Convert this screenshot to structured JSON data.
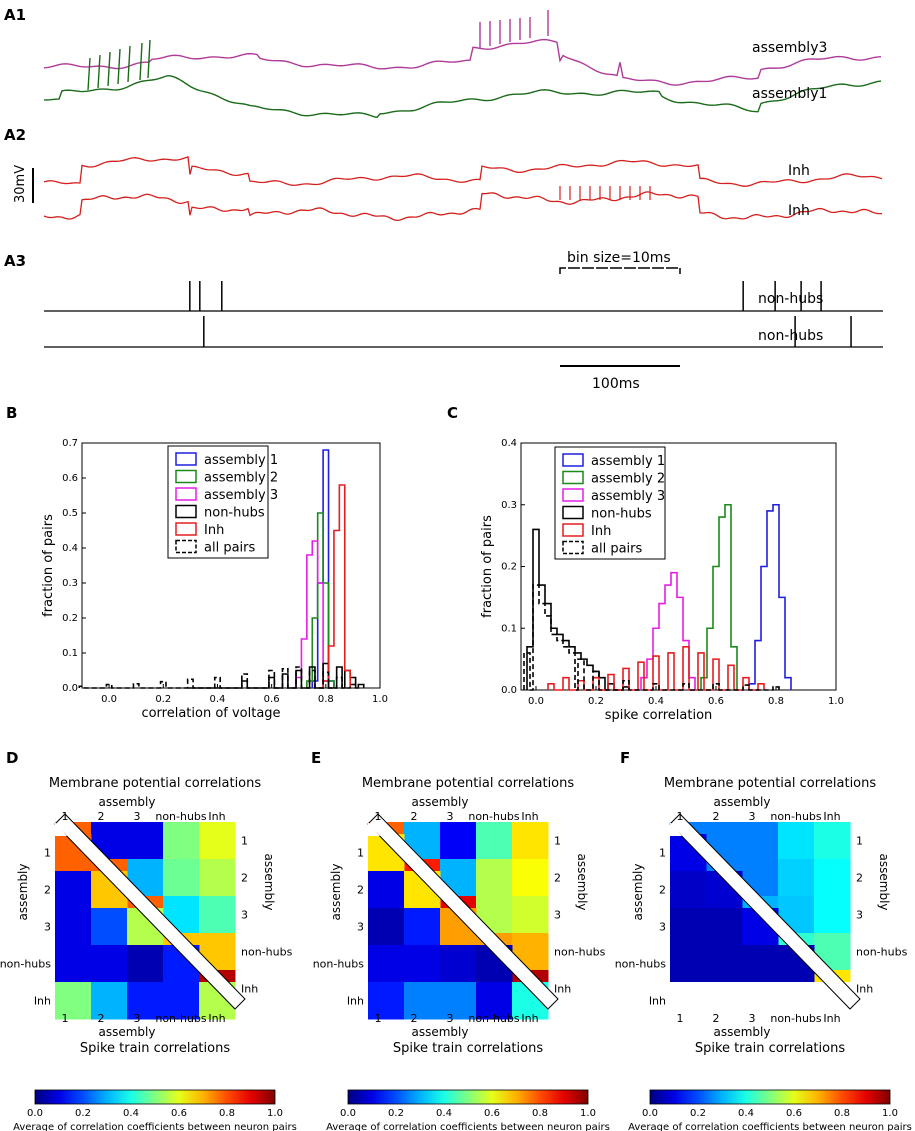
{
  "figure": {
    "panels": {
      "A1": "A1",
      "A2": "A2",
      "A3": "A3",
      "B": "B",
      "C": "C",
      "D": "D",
      "E": "E",
      "F": "F"
    },
    "traces": {
      "assembly3_label": "assembly3",
      "assembly1_label": "assembly1",
      "inh1_label": "Inh",
      "inh2_label": "Inh",
      "scale_voltage": "30mV",
      "colors": {
        "assembly3": "#b03a9a",
        "assembly1": "#1a6b1a",
        "inh": "#d4201e"
      }
    },
    "rasters": {
      "bin_label": "bin size=10ms",
      "row1_label": "non-hubs",
      "row2_label": "non-hubs",
      "time_scale": "100ms",
      "row1_spikes_ms": [
        73,
        78,
        89,
        350,
        366,
        379,
        389
      ],
      "row2_spikes_ms": [
        80,
        376,
        404
      ],
      "t_max_ms": 420
    }
  },
  "chart_data": [
    {
      "id": "B",
      "type": "histogram",
      "title": "",
      "xlabel": "correlation of voltage",
      "ylabel": "fraction of pairs",
      "xlim": [
        -0.1,
        1.0
      ],
      "ylim": [
        0,
        0.7
      ],
      "xticks": [
        "0.0",
        "0.2",
        "0.4",
        "0.6",
        "0.8",
        "1.0"
      ],
      "yticks": [
        "0.0",
        "0.1",
        "0.2",
        "0.3",
        "0.4",
        "0.5",
        "0.6",
        "0.7"
      ],
      "legend": [
        "assembly 1",
        "assembly 2",
        "assembly 3",
        "non-hubs",
        "Inh",
        "all pairs"
      ],
      "series": [
        {
          "name": "assembly 1",
          "color": "#1f1fe0",
          "dash": false,
          "x": [
            0.76,
            0.78,
            0.8,
            0.82
          ],
          "values": [
            0.02,
            0.3,
            0.68,
            0.02
          ]
        },
        {
          "name": "assembly 2",
          "color": "#1a8a1a",
          "dash": false,
          "x": [
            0.74,
            0.76,
            0.78,
            0.8,
            0.82
          ],
          "values": [
            0.02,
            0.2,
            0.5,
            0.3,
            0.02
          ]
        },
        {
          "name": "assembly 3",
          "color": "#e61ee6",
          "dash": false,
          "x": [
            0.7,
            0.72,
            0.74,
            0.76,
            0.78,
            0.8
          ],
          "values": [
            0.03,
            0.14,
            0.38,
            0.42,
            0.3,
            0.02
          ]
        },
        {
          "name": "non-hubs",
          "color": "#000000",
          "dash": false,
          "x": [
            0.3,
            0.5,
            0.6,
            0.65,
            0.7,
            0.75,
            0.8,
            0.85,
            0.88,
            0.9,
            0.93
          ],
          "values": [
            0.0,
            0.02,
            0.03,
            0.04,
            0.05,
            0.06,
            0.07,
            0.06,
            0.05,
            0.03,
            0.01
          ]
        },
        {
          "name": "Inh",
          "color": "#e61e1e",
          "dash": false,
          "x": [
            0.8,
            0.82,
            0.84,
            0.86,
            0.88
          ],
          "values": [
            0.02,
            0.12,
            0.45,
            0.58,
            0.05
          ]
        },
        {
          "name": "all pairs",
          "color": "#000000",
          "dash": true,
          "x": [
            -0.1,
            0.0,
            0.1,
            0.2,
            0.3,
            0.4,
            0.5,
            0.6,
            0.65,
            0.7,
            0.75,
            0.8,
            0.85,
            0.9
          ],
          "values": [
            0.005,
            0.01,
            0.012,
            0.018,
            0.025,
            0.03,
            0.04,
            0.05,
            0.055,
            0.06,
            0.05,
            0.045,
            0.03,
            0.01
          ]
        }
      ]
    },
    {
      "id": "C",
      "type": "histogram",
      "title": "",
      "xlabel": "spike correlation",
      "ylabel": "fraction of pairs",
      "xlim": [
        -0.05,
        1.0
      ],
      "ylim": [
        0,
        0.4
      ],
      "xticks": [
        "0.0",
        "0.2",
        "0.4",
        "0.6",
        "0.8",
        "1.0"
      ],
      "yticks": [
        "0.0",
        "0.1",
        "0.2",
        "0.3",
        "0.4"
      ],
      "legend": [
        "assembly 1",
        "assembly 2",
        "assembly 3",
        "non-hubs",
        "Inh",
        "all pairs"
      ],
      "series": [
        {
          "name": "assembly 1",
          "color": "#1f1fe0",
          "dash": false,
          "x": [
            0.72,
            0.74,
            0.76,
            0.78,
            0.8,
            0.82,
            0.84
          ],
          "values": [
            0.01,
            0.08,
            0.2,
            0.29,
            0.3,
            0.15,
            0.02
          ]
        },
        {
          "name": "assembly 2",
          "color": "#1a8a1a",
          "dash": false,
          "x": [
            0.56,
            0.58,
            0.6,
            0.62,
            0.64,
            0.66
          ],
          "values": [
            0.02,
            0.1,
            0.2,
            0.28,
            0.3,
            0.07
          ]
        },
        {
          "name": "assembly 3",
          "color": "#e61ee6",
          "dash": false,
          "x": [
            0.36,
            0.38,
            0.4,
            0.42,
            0.44,
            0.46,
            0.48,
            0.5,
            0.52
          ],
          "values": [
            0.02,
            0.05,
            0.1,
            0.14,
            0.17,
            0.19,
            0.15,
            0.08,
            0.02
          ]
        },
        {
          "name": "non-hubs",
          "color": "#000000",
          "dash": false,
          "x": [
            -0.02,
            0.0,
            0.02,
            0.04,
            0.06,
            0.08,
            0.1,
            0.12,
            0.14,
            0.16,
            0.18,
            0.2,
            0.22,
            0.25,
            0.3
          ],
          "values": [
            0.07,
            0.26,
            0.17,
            0.14,
            0.1,
            0.09,
            0.08,
            0.07,
            0.06,
            0.05,
            0.04,
            0.03,
            0.02,
            0.01,
            0.005
          ]
        },
        {
          "name": "Inh",
          "color": "#e61e1e",
          "dash": false,
          "x": [
            0.05,
            0.1,
            0.15,
            0.2,
            0.25,
            0.3,
            0.35,
            0.4,
            0.45,
            0.5,
            0.55,
            0.6,
            0.65,
            0.7,
            0.75
          ],
          "values": [
            0.01,
            0.02,
            0.015,
            0.02,
            0.025,
            0.035,
            0.045,
            0.055,
            0.06,
            0.07,
            0.06,
            0.05,
            0.04,
            0.02,
            0.01
          ]
        },
        {
          "name": "all pairs",
          "color": "#000000",
          "dash": true,
          "x": [
            -0.03,
            0.0,
            0.02,
            0.04,
            0.06,
            0.08,
            0.1,
            0.12,
            0.15,
            0.2,
            0.3,
            0.4,
            0.5,
            0.6,
            0.7,
            0.8
          ],
          "values": [
            0.06,
            0.17,
            0.14,
            0.12,
            0.09,
            0.08,
            0.07,
            0.06,
            0.05,
            0.03,
            0.015,
            0.01,
            0.01,
            0.01,
            0.008,
            0.005
          ]
        }
      ]
    },
    {
      "id": "D",
      "type": "heatmap",
      "top_title": "Membrane potential correlations",
      "bottom_title": "Spike train correlations",
      "axis_label": "assembly",
      "categories": [
        "1",
        "2",
        "3",
        "non-hubs",
        "Inh"
      ],
      "colorbar_label": "Average of correlation coefficients between neuron pairs",
      "colorbar_ticks": [
        "0.0",
        "0.2",
        "0.4",
        "0.6",
        "0.8",
        "1.0"
      ],
      "upper": [
        [
          0.78,
          0.1,
          0.1,
          0.5,
          0.6
        ],
        [
          null,
          0.78,
          0.3,
          0.48,
          0.55
        ],
        [
          null,
          null,
          0.78,
          0.35,
          0.45
        ],
        [
          null,
          null,
          null,
          0.68,
          0.68
        ],
        [
          null,
          null,
          null,
          null,
          0.95
        ]
      ],
      "lower": [
        [
          0.78,
          null,
          null,
          null,
          null
        ],
        [
          0.1,
          0.68,
          null,
          null,
          null
        ],
        [
          0.1,
          0.2,
          0.55,
          null,
          null
        ],
        [
          0.1,
          0.1,
          0.05,
          0.15,
          null
        ],
        [
          0.5,
          0.3,
          0.15,
          0.15,
          0.55
        ]
      ]
    },
    {
      "id": "E",
      "type": "heatmap",
      "top_title": "Membrane potential correlations",
      "bottom_title": "Spike train correlations",
      "axis_label": "assembly",
      "categories": [
        "1",
        "2",
        "3",
        "non-hubs",
        "Inh"
      ],
      "colorbar_label": "Average of correlation coefficients between neuron pairs",
      "colorbar_ticks": [
        "0.0",
        "0.2",
        "0.4",
        "0.6",
        "0.8",
        "1.0"
      ],
      "upper": [
        [
          0.78,
          0.3,
          0.12,
          0.45,
          0.65
        ],
        [
          null,
          0.85,
          0.3,
          0.55,
          0.62
        ],
        [
          null,
          null,
          0.9,
          0.55,
          0.58
        ],
        [
          null,
          null,
          null,
          0.72,
          0.7
        ],
        [
          null,
          null,
          null,
          null,
          0.95
        ]
      ],
      "lower": [
        [
          0.65,
          null,
          null,
          null,
          null
        ],
        [
          0.1,
          0.65,
          null,
          null,
          null
        ],
        [
          0.05,
          0.15,
          0.72,
          null,
          null
        ],
        [
          0.1,
          0.1,
          0.08,
          0.05,
          null
        ],
        [
          0.15,
          0.25,
          0.25,
          0.1,
          0.4
        ]
      ]
    },
    {
      "id": "F",
      "type": "heatmap",
      "top_title": "Membrane potential correlations",
      "bottom_title": "Spike train correlations",
      "axis_label": "assembly",
      "categories": [
        "1",
        "2",
        "3",
        "non-hubs",
        "Inh"
      ],
      "colorbar_label": "Average of correlation coefficients between neuron pairs",
      "colorbar_ticks": [
        "0.0",
        "0.2",
        "0.4",
        "0.6",
        "0.8",
        "1.0"
      ],
      "upper": [
        [
          0.25,
          0.25,
          0.25,
          0.35,
          0.4
        ],
        [
          null,
          0.25,
          0.25,
          0.33,
          0.38
        ],
        [
          null,
          null,
          0.3,
          0.32,
          0.38
        ],
        [
          null,
          null,
          null,
          0.42,
          0.45
        ],
        [
          null,
          null,
          null,
          null,
          0.65
        ]
      ],
      "lower": [
        [
          0.1,
          null,
          null,
          null,
          null
        ],
        [
          0.07,
          0.08,
          null,
          null,
          null
        ],
        [
          0.05,
          0.05,
          0.1,
          null,
          null
        ],
        [
          0.05,
          0.05,
          0.05,
          0.05,
          null
        ],
        [
          null,
          null,
          null,
          null,
          null
        ]
      ]
    }
  ]
}
